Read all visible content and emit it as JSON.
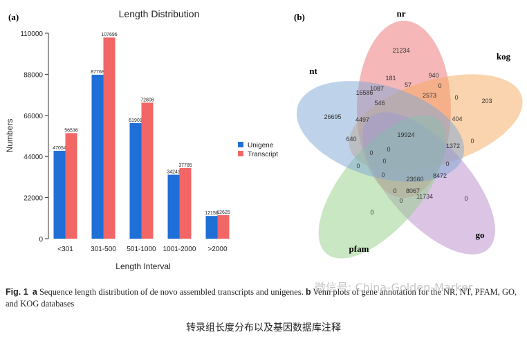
{
  "chart_data": [
    {
      "type": "bar",
      "panel_label": "(a)",
      "title": "Length Distribution",
      "xlabel": "Length Interval",
      "ylabel": "Numbers",
      "categories": [
        "<301",
        "301-500",
        "501-1000",
        "1001-2000",
        ">2000"
      ],
      "yticks": [
        0,
        22000,
        44000,
        66000,
        88000,
        110000
      ],
      "ylim": [
        0,
        110000
      ],
      "legend_position": "right",
      "series": [
        {
          "name": "Unigene",
          "color": "#1f6fd6",
          "values": [
            47054,
            87768,
            61901,
            34241,
            12158
          ]
        },
        {
          "name": "Transcript",
          "color": "#f26666",
          "values": [
            56536,
            107696,
            72808,
            37785,
            12625
          ]
        }
      ]
    },
    {
      "type": "venn",
      "panel_label": "(b)",
      "sets": [
        {
          "name": "nr",
          "color": "#ec7070"
        },
        {
          "name": "kog",
          "color": "#f5a95e"
        },
        {
          "name": "go",
          "color": "#b88ac9"
        },
        {
          "name": "pfam",
          "color": "#93cf85"
        },
        {
          "name": "nt",
          "color": "#7ea8d6"
        }
      ],
      "region_values": [
        "21234",
        "203",
        "0",
        "0",
        "26695",
        "940",
        "181",
        "57",
        "0",
        "2573",
        "16586",
        "1087",
        "546",
        "0",
        "4497",
        "404",
        "19924",
        "640",
        "1372",
        "0",
        "0",
        "0",
        "0",
        "0",
        "0",
        "8472",
        "23660",
        "0",
        "8067",
        "11734",
        "0",
        "0"
      ]
    }
  ],
  "caption": {
    "fig_label": "Fig. 1",
    "panel_a": "a",
    "text_a": "Sequence length distribution of de novo assembled transcripts and unigenes.",
    "panel_b": "b",
    "text_b": "Venn plots of gene annotation for the NR, NT, PFAM, GO, and KOG databases"
  },
  "watermark": "微信号: China-Golden-Marker",
  "subcaption": "转录组长度分布以及基因数据库注释"
}
